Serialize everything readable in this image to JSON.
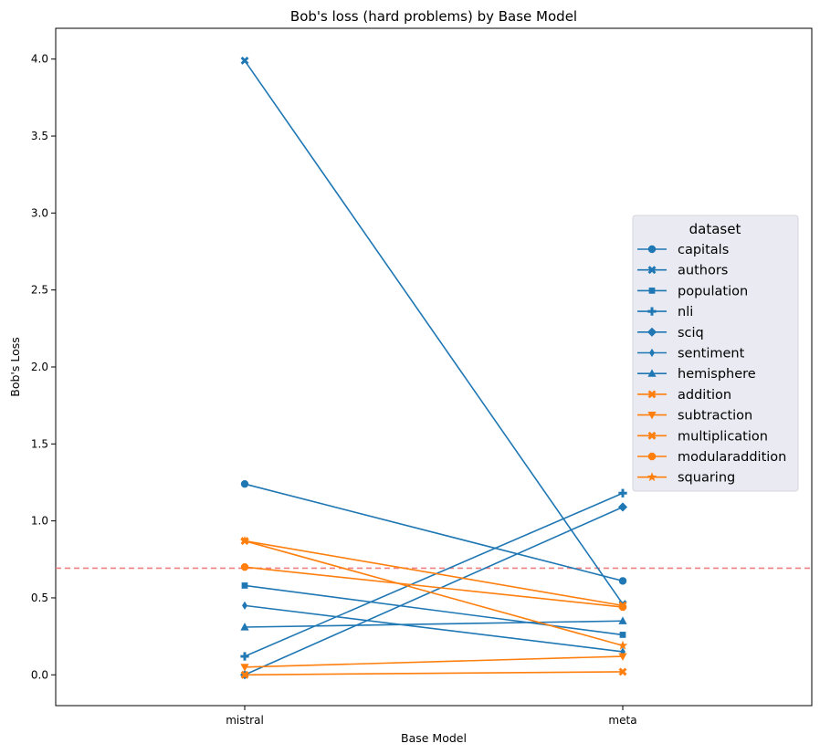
{
  "chart_data": {
    "type": "line",
    "title": "Bob's loss (hard problems) by Base Model",
    "xlabel": "Base Model",
    "ylabel": "Bob's Loss",
    "categories": [
      "mistral",
      "meta"
    ],
    "ylim": [
      -0.2,
      4.2
    ],
    "yticks": [
      "0.0",
      "0.5",
      "1.0",
      "1.5",
      "2.0",
      "2.5",
      "3.0",
      "3.5",
      "4.0"
    ],
    "reference_line": {
      "y": 0.693,
      "color": "#f08080",
      "style": "dashed"
    },
    "legend": {
      "title": "dataset",
      "placement": "right",
      "background": "#eaeaf2"
    },
    "grid": false,
    "series": [
      {
        "name": "capitals",
        "values": [
          1.24,
          0.61
        ],
        "color": "#1f77b4",
        "marker": "circle"
      },
      {
        "name": "authors",
        "values": [
          3.99,
          0.46
        ],
        "color": "#1f77b4",
        "marker": "x"
      },
      {
        "name": "population",
        "values": [
          0.58,
          0.26
        ],
        "color": "#1f77b4",
        "marker": "square"
      },
      {
        "name": "nli",
        "values": [
          0.12,
          1.18
        ],
        "color": "#1f77b4",
        "marker": "plus"
      },
      {
        "name": "sciq",
        "values": [
          0.0,
          1.09
        ],
        "color": "#1f77b4",
        "marker": "diamond"
      },
      {
        "name": "sentiment",
        "values": [
          0.45,
          0.15
        ],
        "color": "#1f77b4",
        "marker": "thin-diamond"
      },
      {
        "name": "hemisphere",
        "values": [
          0.31,
          0.35
        ],
        "color": "#1f77b4",
        "marker": "triangle-up"
      },
      {
        "name": "addition",
        "values": [
          0.0,
          0.02
        ],
        "color": "#ff7f0e",
        "marker": "x"
      },
      {
        "name": "subtraction",
        "values": [
          0.05,
          0.12
        ],
        "color": "#ff7f0e",
        "marker": "triangle-down"
      },
      {
        "name": "multiplication",
        "values": [
          0.87,
          0.45
        ],
        "color": "#ff7f0e",
        "marker": "x"
      },
      {
        "name": "modularaddition",
        "values": [
          0.7,
          0.44
        ],
        "color": "#ff7f0e",
        "marker": "octagon"
      },
      {
        "name": "squaring",
        "values": [
          0.87,
          0.19
        ],
        "color": "#ff7f0e",
        "marker": "star"
      }
    ]
  }
}
